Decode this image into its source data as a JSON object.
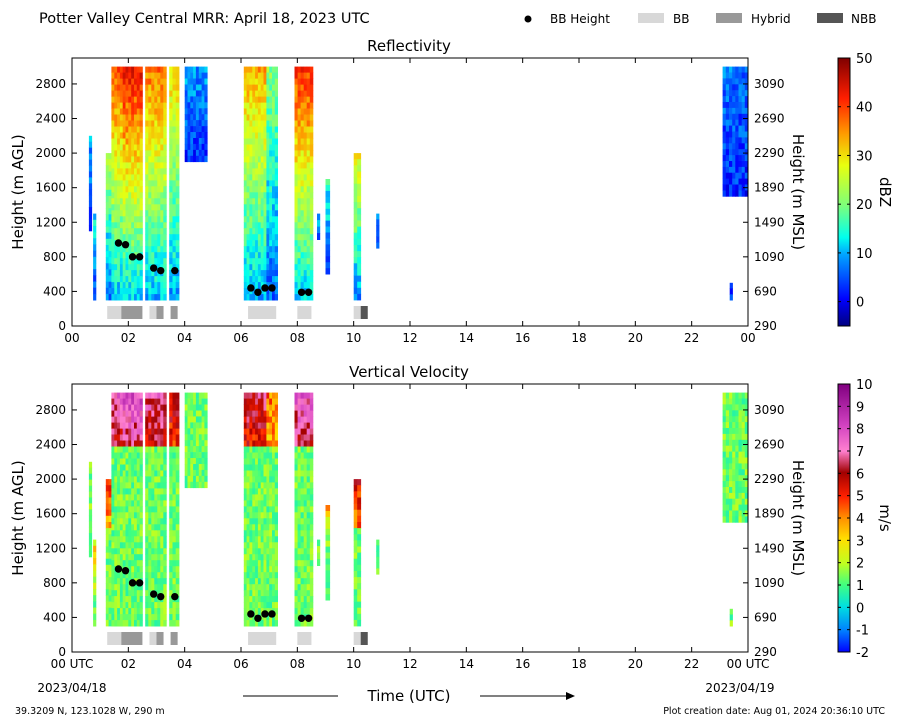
{
  "header": {
    "title": "Potter Valley Central MRR:  April 18, 2023 UTC",
    "legend": [
      {
        "label": "BB Height",
        "kind": "dot",
        "color": "#000000"
      },
      {
        "label": "BB",
        "kind": "box",
        "color": "#d8d8d8"
      },
      {
        "label": "Hybrid",
        "kind": "box",
        "color": "#999999"
      },
      {
        "label": "NBB",
        "kind": "box",
        "color": "#555555"
      }
    ]
  },
  "footer": {
    "location": "39.3209 N, 123.1028 W, 290 m",
    "created": "Plot creation date: Aug 01, 2024 20:36:10 UTC",
    "time_label": "Time (UTC)",
    "start_date": "2023/04/18",
    "end_date": "2023/04/19"
  },
  "chart_data": [
    {
      "type": "heatmap",
      "title": "Reflectivity",
      "ylabel": "Height (m AGL)",
      "ylabel_right": "Height (m MSL)",
      "colorbar_label": "dBZ",
      "xlim": [
        0,
        24
      ],
      "ylim": [
        0,
        3100
      ],
      "x_ticks": [
        "00",
        "02",
        "04",
        "06",
        "08",
        "10",
        "12",
        "14",
        "16",
        "18",
        "20",
        "22",
        "00"
      ],
      "y_ticks": [
        0,
        400,
        800,
        1200,
        1600,
        2000,
        2400,
        2800
      ],
      "y_ticks_right": [
        290,
        690,
        1090,
        1490,
        1890,
        2290,
        2690,
        3090
      ],
      "colorbar_range": [
        -5,
        50
      ],
      "colorbar_ticks": [
        0,
        10,
        20,
        30,
        40,
        50
      ],
      "bb_height": [
        [
          1.65,
          960
        ],
        [
          1.9,
          940
        ],
        [
          2.15,
          800
        ],
        [
          2.4,
          800
        ],
        [
          2.9,
          670
        ],
        [
          3.15,
          640
        ],
        [
          3.65,
          640
        ],
        [
          6.35,
          440
        ],
        [
          6.6,
          390
        ],
        [
          6.85,
          440
        ],
        [
          7.1,
          440
        ],
        [
          8.15,
          390
        ],
        [
          8.4,
          390
        ]
      ],
      "bb_type": [
        {
          "start": 1.25,
          "end": 1.75,
          "class": "BB"
        },
        {
          "start": 1.75,
          "end": 2.5,
          "class": "Hybrid"
        },
        {
          "start": 2.75,
          "end": 3.0,
          "class": "BB"
        },
        {
          "start": 3.0,
          "end": 3.25,
          "class": "Hybrid"
        },
        {
          "start": 3.5,
          "end": 3.75,
          "class": "Hybrid"
        },
        {
          "start": 6.25,
          "end": 7.25,
          "class": "BB"
        },
        {
          "start": 8.0,
          "end": 8.5,
          "class": "BB"
        },
        {
          "start": 10.0,
          "end": 10.25,
          "class": "BB"
        },
        {
          "start": 10.25,
          "end": 10.5,
          "class": "NBB"
        }
      ]
    },
    {
      "type": "heatmap",
      "title": "Vertical Velocity",
      "ylabel": "Height (m AGL)",
      "ylabel_right": "Height (m MSL)",
      "xlabel": "Time (UTC)",
      "colorbar_label": "m/s",
      "xlim": [
        0,
        24
      ],
      "ylim": [
        0,
        3100
      ],
      "x_ticks": [
        "00 UTC",
        "02",
        "04",
        "06",
        "08",
        "10",
        "12",
        "14",
        "16",
        "18",
        "20",
        "22",
        "00 UTC"
      ],
      "y_ticks": [
        0,
        400,
        800,
        1200,
        1600,
        2000,
        2400,
        2800
      ],
      "y_ticks_right": [
        290,
        690,
        1090,
        1490,
        1890,
        2290,
        2690,
        3090
      ],
      "colorbar_range": [
        -2,
        10
      ],
      "colorbar_ticks": [
        -2,
        -1,
        0,
        1,
        2,
        3,
        4,
        5,
        6,
        7,
        8,
        9,
        10
      ],
      "bb_height": [
        [
          1.65,
          960
        ],
        [
          1.9,
          940
        ],
        [
          2.15,
          800
        ],
        [
          2.4,
          800
        ],
        [
          2.9,
          670
        ],
        [
          3.15,
          640
        ],
        [
          3.65,
          640
        ],
        [
          6.35,
          440
        ],
        [
          6.6,
          390
        ],
        [
          6.85,
          440
        ],
        [
          7.1,
          440
        ],
        [
          8.15,
          390
        ],
        [
          8.4,
          390
        ]
      ],
      "bb_type": [
        {
          "start": 1.25,
          "end": 1.75,
          "class": "BB"
        },
        {
          "start": 1.75,
          "end": 2.5,
          "class": "Hybrid"
        },
        {
          "start": 2.75,
          "end": 3.0,
          "class": "BB"
        },
        {
          "start": 3.0,
          "end": 3.25,
          "class": "Hybrid"
        },
        {
          "start": 3.5,
          "end": 3.75,
          "class": "Hybrid"
        },
        {
          "start": 6.25,
          "end": 7.25,
          "class": "BB"
        },
        {
          "start": 8.0,
          "end": 8.5,
          "class": "BB"
        },
        {
          "start": 10.0,
          "end": 10.25,
          "class": "BB"
        },
        {
          "start": 10.25,
          "end": 10.5,
          "class": "NBB"
        }
      ]
    }
  ],
  "echo_columns": [
    {
      "start": 0.6,
      "end": 0.7,
      "bottom": 1100,
      "top": 2200,
      "core": 8
    },
    {
      "start": 0.75,
      "end": 0.85,
      "bottom": 300,
      "top": 1300,
      "core": 12
    },
    {
      "start": 1.2,
      "end": 1.4,
      "bottom": 300,
      "top": 2000,
      "core": 22
    },
    {
      "start": 1.4,
      "end": 1.8,
      "bottom": 300,
      "top": 3000,
      "core": 38
    },
    {
      "start": 1.8,
      "end": 2.5,
      "bottom": 300,
      "top": 3000,
      "core": 42
    },
    {
      "start": 2.6,
      "end": 3.35,
      "bottom": 300,
      "top": 3000,
      "core": 36
    },
    {
      "start": 3.45,
      "end": 3.8,
      "bottom": 300,
      "top": 3000,
      "core": 30
    },
    {
      "start": 4.0,
      "end": 4.8,
      "bottom": 1900,
      "top": 3000,
      "core": 8
    },
    {
      "start": 6.1,
      "end": 6.9,
      "bottom": 300,
      "top": 3000,
      "core": 33
    },
    {
      "start": 6.9,
      "end": 7.3,
      "bottom": 300,
      "top": 3000,
      "core": 20
    },
    {
      "start": 7.9,
      "end": 8.55,
      "bottom": 300,
      "top": 3000,
      "core": 40
    },
    {
      "start": 8.7,
      "end": 8.8,
      "bottom": 1000,
      "top": 1300,
      "core": 10
    },
    {
      "start": 9.0,
      "end": 9.15,
      "bottom": 600,
      "top": 1700,
      "core": 14
    },
    {
      "start": 10.0,
      "end": 10.25,
      "bottom": 300,
      "top": 2000,
      "core": 28
    },
    {
      "start": 10.8,
      "end": 10.9,
      "bottom": 900,
      "top": 1300,
      "core": 10
    },
    {
      "start": 23.1,
      "end": 24.0,
      "bottom": 1500,
      "top": 3000,
      "core": 6
    },
    {
      "start": 23.35,
      "end": 23.45,
      "bottom": 300,
      "top": 500,
      "core": 4
    }
  ]
}
